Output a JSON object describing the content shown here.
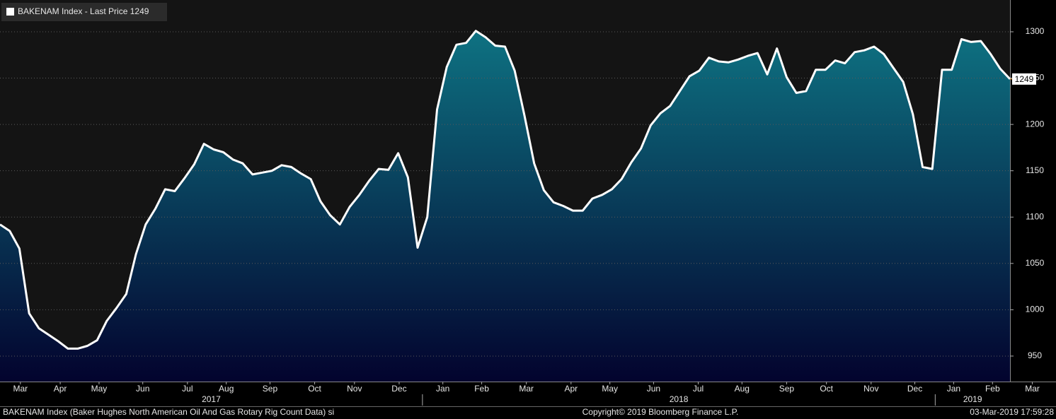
{
  "chart_data": {
    "type": "area",
    "series": [
      {
        "name": "BAKENAM Index - Last Price 1249",
        "color": "#ffffff",
        "fill_top": "#0e7282",
        "fill_bottom": "#03032e",
        "values": [
          1092,
          1085,
          1066,
          996,
          980,
          973,
          966,
          958,
          958,
          961,
          967,
          988,
          1002,
          1017,
          1060,
          1092,
          1109,
          1130,
          1128,
          1142,
          1157,
          1179,
          1173,
          1170,
          1162,
          1158,
          1146,
          1148,
          1150,
          1156,
          1154,
          1147,
          1141,
          1117,
          1102,
          1092,
          1111,
          1124,
          1139,
          1152,
          1151,
          1169,
          1143,
          1067,
          1100,
          1216,
          1262,
          1286,
          1288,
          1301,
          1294,
          1285,
          1284,
          1258,
          1210,
          1158,
          1129,
          1116,
          1112,
          1107,
          1107,
          1120,
          1124,
          1130,
          1141,
          1159,
          1174,
          1199,
          1212,
          1220,
          1236,
          1252,
          1258,
          1272,
          1268,
          1267,
          1270,
          1274,
          1277,
          1254,
          1282,
          1251,
          1234,
          1236,
          1259,
          1259,
          1269,
          1266,
          1278,
          1280,
          1284,
          1276,
          1261,
          1246,
          1211,
          1154,
          1152,
          1259,
          1259,
          1292,
          1289,
          1290,
          1276,
          1260,
          1249
        ]
      }
    ],
    "xlim": [
      0,
      104
    ],
    "xticks": [
      {
        "value": 2.1,
        "label": "Mar"
      },
      {
        "value": 6.2,
        "label": "Apr"
      },
      {
        "value": 10.2,
        "label": "May"
      },
      {
        "value": 14.7,
        "label": "Jun"
      },
      {
        "value": 19.3,
        "label": "Jul"
      },
      {
        "value": 23.3,
        "label": "Aug"
      },
      {
        "value": 27.8,
        "label": "Sep"
      },
      {
        "value": 32.4,
        "label": "Oct"
      },
      {
        "value": 36.5,
        "label": "Nov"
      },
      {
        "value": 41.1,
        "label": "Dec"
      },
      {
        "value": 45.6,
        "label": "Jan"
      },
      {
        "value": 49.6,
        "label": "Feb"
      },
      {
        "value": 54.2,
        "label": "Mar"
      },
      {
        "value": 58.8,
        "label": "Apr"
      },
      {
        "value": 62.8,
        "label": "May"
      },
      {
        "value": 67.3,
        "label": "Jun"
      },
      {
        "value": 71.9,
        "label": "Jul"
      },
      {
        "value": 76.4,
        "label": "Aug"
      },
      {
        "value": 81.0,
        "label": "Sep"
      },
      {
        "value": 85.1,
        "label": "Oct"
      },
      {
        "value": 89.7,
        "label": "Nov"
      },
      {
        "value": 94.2,
        "label": "Dec"
      },
      {
        "value": 98.2,
        "label": "Jan"
      },
      {
        "value": 102.2,
        "label": "Feb"
      },
      {
        "value": 106.3,
        "label": "Mar"
      }
    ],
    "years": [
      {
        "value": 0,
        "label": "2017"
      },
      {
        "value": 43.5,
        "label": "2018"
      },
      {
        "value": 96.3,
        "label": "2019"
      }
    ],
    "ylim": [
      922.5,
      1334.3
    ],
    "yticks": [
      950,
      1000,
      1050,
      1100,
      1150,
      1200,
      1250,
      1300
    ],
    "grid": true,
    "last_line_color": "#e8902a",
    "footer_left": "BAKENAM Index (Baker Hughes North American Oil And Gas Rotary Rig Count Data) si",
    "footer_center": "Copyright© 2019 Bloomberg Finance L.P.",
    "footer_right": "03-Mar-2019 17:59:28"
  }
}
